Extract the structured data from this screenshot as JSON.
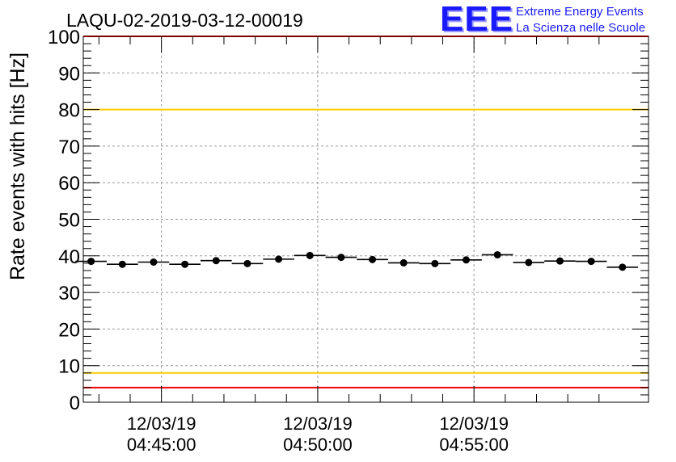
{
  "title": "LAQU-02-2019-03-12-00019",
  "logo": {
    "mark": "EEE",
    "line1": "Extreme Energy Events",
    "line2": "La Scienza nelle Scuole"
  },
  "colors": {
    "red_line": "#ff0000",
    "yellow_line": "#ffcc00",
    "marker": "#000000",
    "logo": "#1a1aff"
  },
  "chart_data": {
    "type": "scatter",
    "title": "LAQU-02-2019-03-12-00019",
    "xlabel": "",
    "ylabel": "Rate events with hits [Hz]",
    "ylim": [
      0,
      100
    ],
    "yticks": [
      0,
      10,
      20,
      30,
      40,
      50,
      60,
      70,
      80,
      90,
      100
    ],
    "xlim": [
      "2019-03-12 04:42:30",
      "2019-03-12 05:00:35"
    ],
    "xticks": [
      {
        "date": "12/03/19",
        "time": "04:45:00",
        "x": "2019-03-12 04:45:00"
      },
      {
        "date": "12/03/19",
        "time": "04:50:00",
        "x": "2019-03-12 04:50:00"
      },
      {
        "date": "12/03/19",
        "time": "04:55:00",
        "x": "2019-03-12 04:55:00"
      }
    ],
    "grid": true,
    "reference_lines": [
      {
        "y": 4,
        "color": "#ff0000"
      },
      {
        "y": 8,
        "color": "#ffcc00"
      },
      {
        "y": 80,
        "color": "#ffcc00"
      },
      {
        "y": 100,
        "color": "#ff0000"
      }
    ],
    "series": [
      {
        "x": [
          "2019-03-12 04:42:45",
          "2019-03-12 04:43:45",
          "2019-03-12 04:44:45",
          "2019-03-12 04:45:45",
          "2019-03-12 04:46:45",
          "2019-03-12 04:47:45",
          "2019-03-12 04:48:45",
          "2019-03-12 04:49:45",
          "2019-03-12 04:50:45",
          "2019-03-12 04:51:45",
          "2019-03-12 04:52:45",
          "2019-03-12 04:53:45",
          "2019-03-12 04:54:45",
          "2019-03-12 04:55:45",
          "2019-03-12 04:56:45",
          "2019-03-12 04:57:45",
          "2019-03-12 04:58:45",
          "2019-03-12 04:59:45"
        ],
        "values": [
          38.5,
          37.7,
          38.3,
          37.7,
          38.7,
          37.9,
          39.1,
          40.1,
          39.6,
          39.0,
          38.1,
          37.9,
          38.9,
          40.3,
          38.2,
          38.6,
          38.5,
          36.9
        ],
        "bin_width_seconds": 60
      }
    ]
  }
}
